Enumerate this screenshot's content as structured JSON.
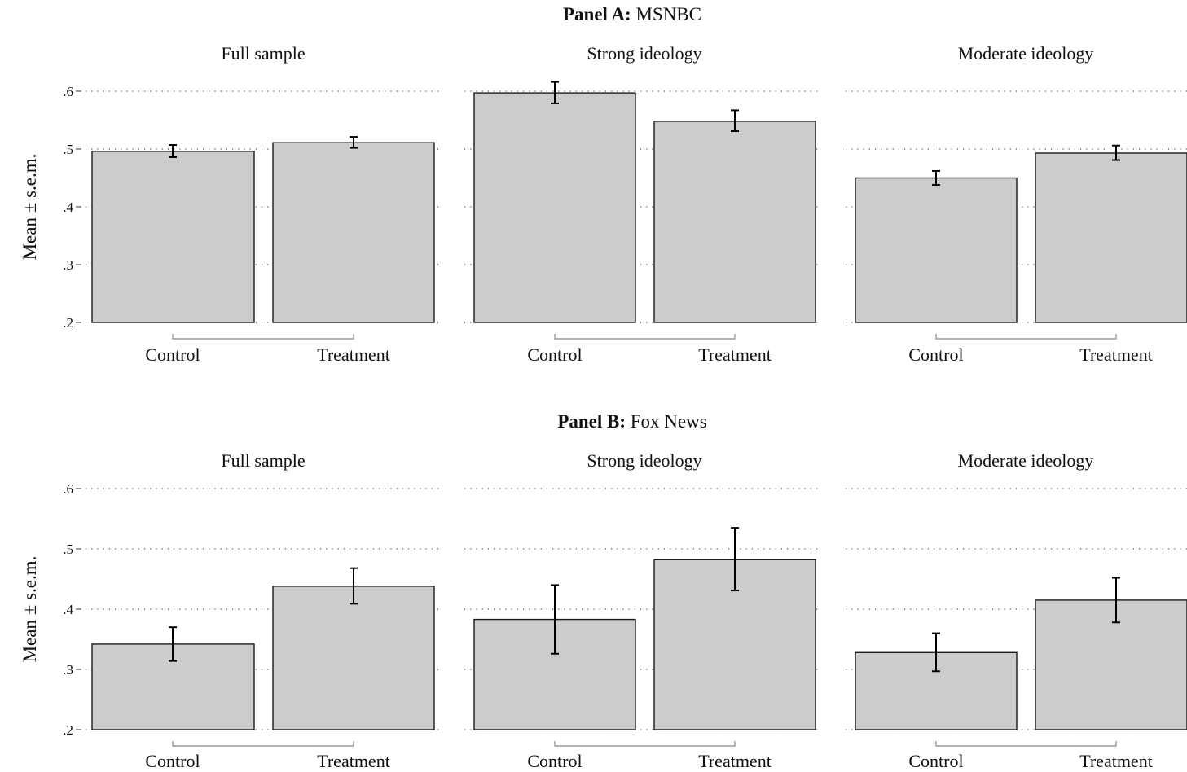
{
  "panels": [
    {
      "title_bold": "Panel A:",
      "title_rest": "MSNBC",
      "ylabel": "Mean ± s.e.m.",
      "yticks": [
        ".2",
        ".3",
        ".4",
        ".5",
        ".6"
      ],
      "subplots": [
        {
          "title": "Full sample",
          "categories": [
            "Control",
            "Treatment"
          ]
        },
        {
          "title": "Strong ideology",
          "categories": [
            "Control",
            "Treatment"
          ]
        },
        {
          "title": "Moderate ideology",
          "categories": [
            "Control",
            "Treatment"
          ]
        }
      ]
    },
    {
      "title_bold": "Panel B:",
      "title_rest": "Fox News",
      "ylabel": "Mean ± s.e.m.",
      "yticks": [
        ".2",
        ".3",
        ".4",
        ".5",
        ".6"
      ],
      "subplots": [
        {
          "title": "Full sample",
          "categories": [
            "Control",
            "Treatment"
          ]
        },
        {
          "title": "Strong ideology",
          "categories": [
            "Control",
            "Treatment"
          ]
        },
        {
          "title": "Moderate ideology",
          "categories": [
            "Control",
            "Treatment"
          ]
        }
      ]
    }
  ],
  "chart_data": [
    {
      "type": "bar",
      "panel": "Panel A: MSNBC",
      "title": "Full sample",
      "categories": [
        "Control",
        "Treatment"
      ],
      "values": [
        0.496,
        0.511
      ],
      "errors": [
        [
          0.486,
          0.507
        ],
        [
          0.502,
          0.521
        ]
      ],
      "ylabel": "Mean ± s.e.m.",
      "ylim": [
        0.2,
        0.6
      ],
      "grid": true
    },
    {
      "type": "bar",
      "panel": "Panel A: MSNBC",
      "title": "Strong ideology",
      "categories": [
        "Control",
        "Treatment"
      ],
      "values": [
        0.597,
        0.548
      ],
      "errors": [
        [
          0.579,
          0.616
        ],
        [
          0.531,
          0.567
        ]
      ],
      "ylabel": "Mean ± s.e.m.",
      "ylim": [
        0.2,
        0.6
      ],
      "grid": true
    },
    {
      "type": "bar",
      "panel": "Panel A: MSNBC",
      "title": "Moderate ideology",
      "categories": [
        "Control",
        "Treatment"
      ],
      "values": [
        0.45,
        0.493
      ],
      "errors": [
        [
          0.438,
          0.462
        ],
        [
          0.481,
          0.506
        ]
      ],
      "ylabel": "Mean ± s.e.m.",
      "ylim": [
        0.2,
        0.6
      ],
      "grid": true
    },
    {
      "type": "bar",
      "panel": "Panel B: Fox News",
      "title": "Full sample",
      "categories": [
        "Control",
        "Treatment"
      ],
      "values": [
        0.342,
        0.438
      ],
      "errors": [
        [
          0.314,
          0.37
        ],
        [
          0.409,
          0.468
        ]
      ],
      "ylabel": "Mean ± s.e.m.",
      "ylim": [
        0.2,
        0.6
      ],
      "grid": true
    },
    {
      "type": "bar",
      "panel": "Panel B: Fox News",
      "title": "Strong ideology",
      "categories": [
        "Control",
        "Treatment"
      ],
      "values": [
        0.383,
        0.482
      ],
      "errors": [
        [
          0.326,
          0.44
        ],
        [
          0.431,
          0.535
        ]
      ],
      "ylabel": "Mean ± s.e.m.",
      "ylim": [
        0.2,
        0.6
      ],
      "grid": true
    },
    {
      "type": "bar",
      "panel": "Panel B: Fox News",
      "title": "Moderate ideology",
      "categories": [
        "Control",
        "Treatment"
      ],
      "values": [
        0.328,
        0.415
      ],
      "errors": [
        [
          0.297,
          0.36
        ],
        [
          0.378,
          0.452
        ]
      ],
      "ylabel": "Mean ± s.e.m.",
      "ylim": [
        0.2,
        0.6
      ],
      "grid": true
    }
  ],
  "colors": {
    "bar_fill": "#cccccc",
    "bar_stroke": "#1a1a1a",
    "grid": "#555555",
    "axis": "#999999",
    "text": "#111111"
  }
}
